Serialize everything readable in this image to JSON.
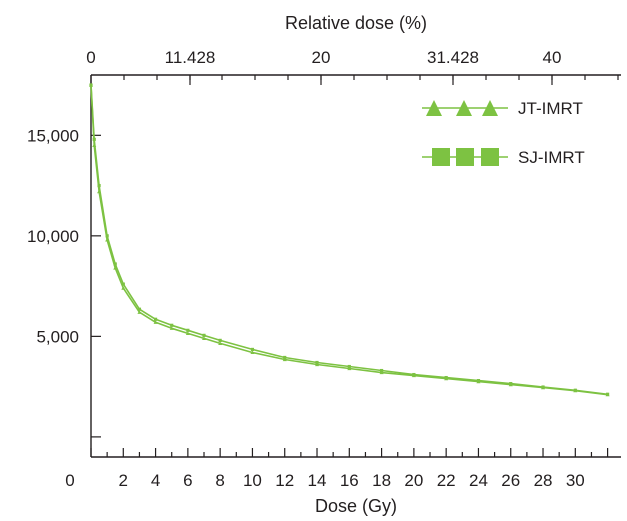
{
  "chart_data": {
    "type": "line",
    "title": "",
    "xlabel": "Dose (Gy)",
    "ylabel": "",
    "top_xlabel": "Relative dose (%)",
    "xlim": [
      0,
      32
    ],
    "ylim": [
      -1000,
      18000
    ],
    "x_ticks": [
      0,
      2,
      4,
      6,
      8,
      10,
      12,
      14,
      16,
      18,
      20,
      22,
      24,
      26,
      28,
      30
    ],
    "x_tick_labels": [
      "0",
      "2",
      "4",
      "6",
      "8",
      "10",
      "12",
      "14",
      "16",
      "18",
      "20",
      "22",
      "24",
      "26",
      "28",
      "30"
    ],
    "y_ticks": [
      0,
      5000,
      10000,
      15000
    ],
    "y_tick_labels": [
      "",
      "5,000",
      "10,000",
      "15,000"
    ],
    "top_tick_labels": [
      "0",
      "11.428",
      "20",
      "31.428",
      "40"
    ],
    "legend_position": "top-right",
    "grid": false,
    "series": [
      {
        "name": "JT-IMRT",
        "marker": "triangle",
        "color": "#7dc242",
        "x": [
          0,
          0.2,
          0.5,
          1,
          1.5,
          2,
          3,
          4,
          5,
          6,
          7,
          8,
          10,
          12,
          14,
          16,
          18,
          20,
          22,
          24,
          26,
          28,
          30,
          32
        ],
        "y": [
          17500,
          14500,
          12200,
          9800,
          8400,
          7400,
          6200,
          5700,
          5400,
          5150,
          4900,
          4650,
          4200,
          3850,
          3600,
          3400,
          3200,
          3050,
          2900,
          2750,
          2600,
          2450,
          2300,
          2100
        ]
      },
      {
        "name": "SJ-IMRT",
        "marker": "square",
        "color": "#7dc242",
        "x": [
          0,
          0.2,
          0.5,
          1,
          1.5,
          2,
          3,
          4,
          5,
          6,
          7,
          8,
          10,
          12,
          14,
          16,
          18,
          20,
          22,
          24,
          26,
          28,
          30,
          32
        ],
        "y": [
          17500,
          14800,
          12500,
          10000,
          8600,
          7600,
          6350,
          5850,
          5550,
          5300,
          5050,
          4800,
          4350,
          3950,
          3700,
          3500,
          3300,
          3100,
          2950,
          2800,
          2650,
          2480,
          2320,
          2120
        ]
      }
    ]
  }
}
